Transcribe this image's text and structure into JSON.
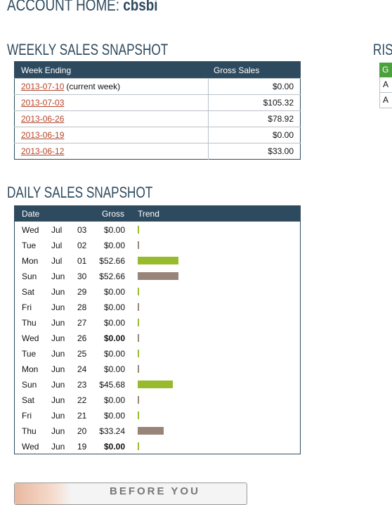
{
  "header": {
    "title_prefix": "ACCOUNT HOME:",
    "username": "cbsbi"
  },
  "weekly": {
    "title": "WEEKLY SALES SNAPSHOT",
    "col_week": "Week Ending",
    "col_gross": "Gross Sales",
    "rows": [
      {
        "date": "2013-07-10",
        "note": "(current week)",
        "gross": "$0.00"
      },
      {
        "date": "2013-07-03",
        "note": "",
        "gross": "$105.32"
      },
      {
        "date": "2013-06-26",
        "note": "",
        "gross": "$78.92"
      },
      {
        "date": "2013-06-19",
        "note": "",
        "gross": "$0.00"
      },
      {
        "date": "2013-06-12",
        "note": "",
        "gross": "$33.00"
      }
    ]
  },
  "daily": {
    "title": "DAILY SALES SNAPSHOT",
    "col_date": "Date",
    "col_gross": "Gross",
    "col_trend": "Trend",
    "rows": [
      {
        "dow": "Wed",
        "mon": "Jul",
        "day": "03",
        "gross": "$0.00",
        "value": 0,
        "bold": false,
        "color": "green"
      },
      {
        "dow": "Tue",
        "mon": "Jul",
        "day": "02",
        "gross": "$0.00",
        "value": 0,
        "bold": false,
        "color": "gray"
      },
      {
        "dow": "Mon",
        "mon": "Jul",
        "day": "01",
        "gross": "$52.66",
        "value": 52.66,
        "bold": false,
        "color": "green"
      },
      {
        "dow": "Sun",
        "mon": "Jun",
        "day": "30",
        "gross": "$52.66",
        "value": 52.66,
        "bold": false,
        "color": "gray"
      },
      {
        "dow": "Sat",
        "mon": "Jun",
        "day": "29",
        "gross": "$0.00",
        "value": 0,
        "bold": false,
        "color": "green"
      },
      {
        "dow": "Fri",
        "mon": "Jun",
        "day": "28",
        "gross": "$0.00",
        "value": 0,
        "bold": false,
        "color": "gray"
      },
      {
        "dow": "Thu",
        "mon": "Jun",
        "day": "27",
        "gross": "$0.00",
        "value": 0,
        "bold": false,
        "color": "green"
      },
      {
        "dow": "Wed",
        "mon": "Jun",
        "day": "26",
        "gross": "$0.00",
        "value": 0,
        "bold": true,
        "color": "gray"
      },
      {
        "dow": "Tue",
        "mon": "Jun",
        "day": "25",
        "gross": "$0.00",
        "value": 0,
        "bold": false,
        "color": "green"
      },
      {
        "dow": "Mon",
        "mon": "Jun",
        "day": "24",
        "gross": "$0.00",
        "value": 0,
        "bold": false,
        "color": "gray"
      },
      {
        "dow": "Sun",
        "mon": "Jun",
        "day": "23",
        "gross": "$45.68",
        "value": 45.68,
        "bold": false,
        "color": "green"
      },
      {
        "dow": "Sat",
        "mon": "Jun",
        "day": "22",
        "gross": "$0.00",
        "value": 0,
        "bold": false,
        "color": "gray"
      },
      {
        "dow": "Fri",
        "mon": "Jun",
        "day": "21",
        "gross": "$0.00",
        "value": 0,
        "bold": false,
        "color": "green"
      },
      {
        "dow": "Thu",
        "mon": "Jun",
        "day": "20",
        "gross": "$33.24",
        "value": 33.24,
        "bold": false,
        "color": "gray"
      },
      {
        "dow": "Wed",
        "mon": "Jun",
        "day": "19",
        "gross": "$0.00",
        "value": 0,
        "bold": true,
        "color": "green"
      }
    ]
  },
  "right_panel": {
    "title": "RIS",
    "header_cell": "G",
    "cells": [
      "A",
      "A"
    ]
  },
  "banner": {
    "text": "BEFORE YOU"
  },
  "colors": {
    "navy": "#2e4a5f",
    "green_bar": "#98bb2e",
    "gray_bar": "#978579",
    "link": "#b5452a",
    "green_header": "#4aa23a"
  }
}
